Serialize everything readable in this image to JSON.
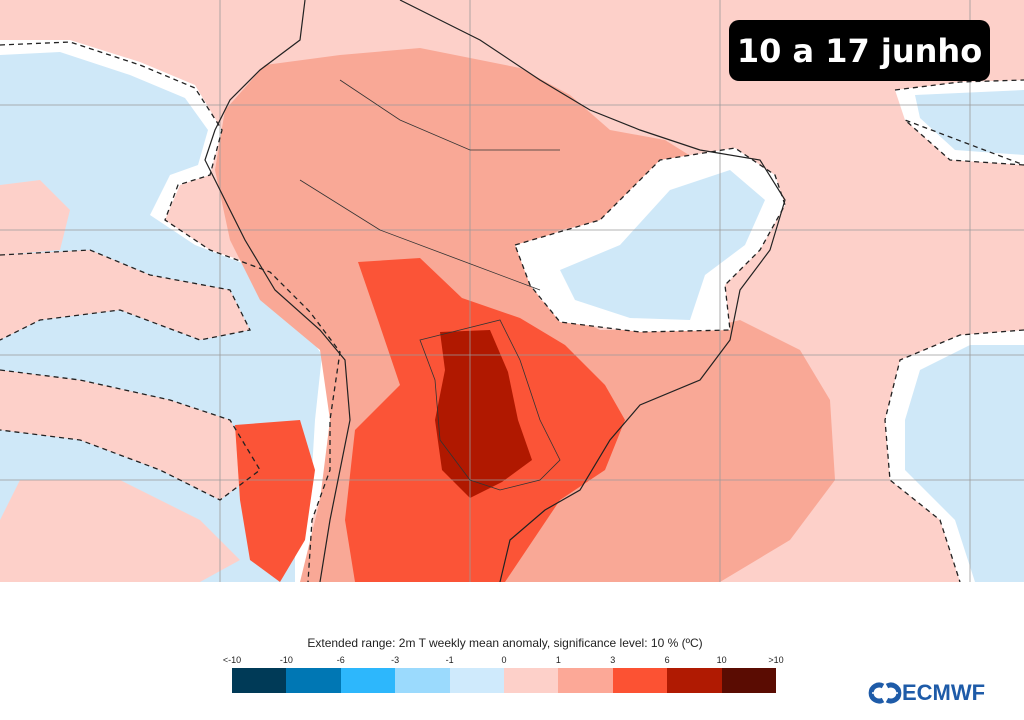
{
  "title_badge": "10 a 17 junho",
  "legend": {
    "title": "Extended range: 2m T weekly mean anomaly, significance level: 10 % (ºC)",
    "ticks": [
      "<-10",
      "-10",
      "-6",
      "-3",
      "-1",
      "0",
      "1",
      "3",
      "6",
      "10",
      ">10"
    ],
    "colors": [
      "#003a57",
      "#0077b4",
      "#2db7fc",
      "#9bdafd",
      "#cfeafc",
      "#fdd0c9",
      "#fca897",
      "#fc5233",
      "#b01a02",
      "#5a0c02"
    ]
  },
  "logo": {
    "text": "ECMWF",
    "color": "#1e5ba8"
  },
  "map_colors": {
    "light_positive": "#fdd0c9",
    "moderate_positive": "#f9a896",
    "strong_positive": "#fb5437",
    "very_strong_positive": "#b01800",
    "light_negative": "#cfeafc"
  }
}
